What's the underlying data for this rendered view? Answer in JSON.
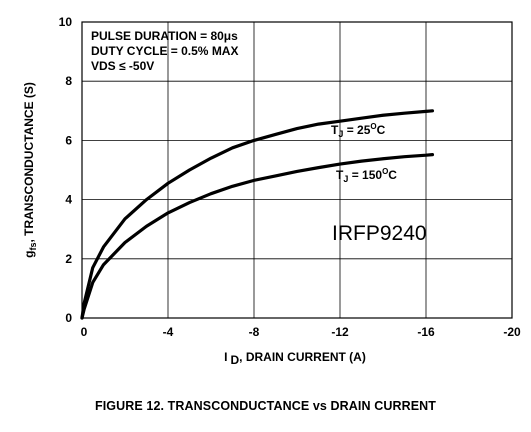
{
  "chart_data": {
    "type": "line",
    "xlabel_main": "I",
    "xlabel_sub": "D",
    "xlabel_rest": ", DRAIN CURRENT (A)",
    "ylabel_main": "g",
    "ylabel_sub": "fs",
    "ylabel_rest": ", TRANSCONDUCTANCE (S)",
    "xlim": [
      0,
      -20
    ],
    "ylim": [
      0,
      10
    ],
    "xticks": [
      "0",
      "-4",
      "-8",
      "-12",
      "-16",
      "-20"
    ],
    "yticks": [
      "0",
      "2",
      "4",
      "6",
      "8",
      "10"
    ],
    "conditions": [
      "PULSE DURATION = 80μs",
      "DUTY CYCLE = 0.5% MAX",
      "VDS ≤ -50V"
    ],
    "part_number": "IRFP9240",
    "series": [
      {
        "name": "TJ = 25oC",
        "label_main": "T",
        "label_sub": "J",
        "label_mid": " = 25",
        "label_sup": "O",
        "label_end": "C",
        "x": [
          -0.1,
          -0.5,
          -1,
          -2,
          -3,
          -4,
          -5,
          -6,
          -7,
          -8,
          -9,
          -10,
          -11,
          -12,
          -13,
          -14,
          -15,
          -16,
          -16.3
        ],
        "y": [
          0.5,
          1.7,
          2.4,
          3.35,
          4.0,
          4.55,
          5.0,
          5.4,
          5.75,
          6.0,
          6.2,
          6.4,
          6.55,
          6.65,
          6.75,
          6.85,
          6.92,
          6.98,
          7.0
        ]
      },
      {
        "name": "TJ = 150oC",
        "label_main": "T",
        "label_sub": "J",
        "label_mid": " = 150",
        "label_sup": "O",
        "label_end": "C",
        "x": [
          -0.1,
          -0.5,
          -1,
          -2,
          -3,
          -4,
          -5,
          -6,
          -7,
          -8,
          -9,
          -10,
          -11,
          -12,
          -13,
          -14,
          -15,
          -16,
          -16.3
        ],
        "y": [
          0.3,
          1.2,
          1.8,
          2.55,
          3.1,
          3.55,
          3.9,
          4.2,
          4.45,
          4.65,
          4.8,
          4.95,
          5.08,
          5.2,
          5.3,
          5.38,
          5.45,
          5.5,
          5.52
        ]
      }
    ]
  },
  "caption": "FIGURE 12.  TRANSCONDUCTANCE vs DRAIN CURRENT"
}
